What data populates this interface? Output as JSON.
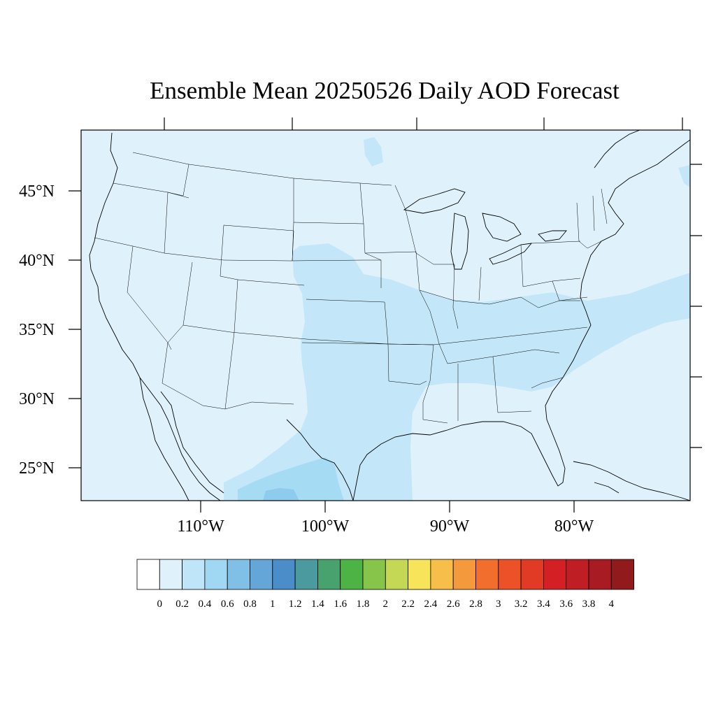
{
  "title": "Ensemble Mean 20250526 Daily AOD Forecast",
  "map": {
    "lat_labels": [
      "45°N",
      "40°N",
      "35°N",
      "30°N",
      "25°N"
    ],
    "lon_labels": [
      "110°W",
      "100°W",
      "90°W",
      "80°W"
    ],
    "background_color": "#dff2fb",
    "border_color": "#000000"
  },
  "colorbar": {
    "labels": [
      "0",
      "0.2",
      "0.4",
      "0.6",
      "0.8",
      "1",
      "1.2",
      "1.4",
      "1.6",
      "1.8",
      "2",
      "2.2",
      "2.4",
      "2.6",
      "2.8",
      "3",
      "3.2",
      "3.4",
      "3.6",
      "3.8",
      "4"
    ],
    "colors": [
      "#ffffff",
      "#dff2fb",
      "#bfe6f8",
      "#a0d8f3",
      "#80bfe6",
      "#65a6d9",
      "#4a8dc8",
      "#4a9a9f",
      "#48a26e",
      "#4db345",
      "#86c44a",
      "#c4d855",
      "#f7e45a",
      "#f7be49",
      "#f49a3d",
      "#f26e2d",
      "#ec5128",
      "#e13b26",
      "#d42025",
      "#be1e24",
      "#a91b22",
      "#911a1d"
    ]
  }
}
